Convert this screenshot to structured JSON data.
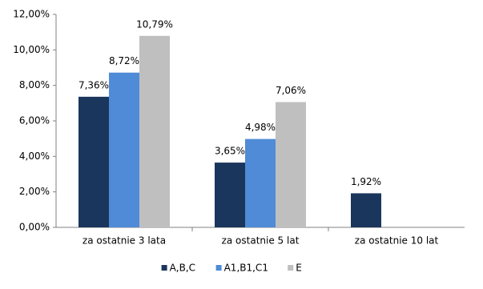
{
  "chart_data": {
    "type": "bar",
    "categories": [
      "za ostatnie 3 lata",
      "za ostatnie 5 lat",
      "za ostatnie 10 lat"
    ],
    "series": [
      {
        "name": "A,B,C",
        "color": "#1b365d",
        "values": [
          7.36,
          3.65,
          1.92
        ],
        "value_labels": [
          "7,36%",
          "3,65%",
          "1,92%"
        ]
      },
      {
        "name": "A1,B1,C1",
        "color": "#4f8bd6",
        "values": [
          8.72,
          4.98,
          null
        ],
        "value_labels": [
          "8,72%",
          "4,98%",
          null
        ]
      },
      {
        "name": "E",
        "color": "#bfbfbf",
        "values": [
          10.79,
          7.06,
          null
        ],
        "value_labels": [
          "10,79%",
          "7,06%",
          null
        ]
      }
    ],
    "ylim": [
      0,
      12
    ],
    "yticks": [
      {
        "value": 0,
        "label": "0,00%"
      },
      {
        "value": 2,
        "label": "2,00%"
      },
      {
        "value": 4,
        "label": "4,00%"
      },
      {
        "value": 6,
        "label": "6,00%"
      },
      {
        "value": 8,
        "label": "8,00%"
      },
      {
        "value": 10,
        "label": "10,00%"
      },
      {
        "value": 12,
        "label": "12,00%"
      }
    ],
    "grid": false,
    "legend": "bottom"
  }
}
